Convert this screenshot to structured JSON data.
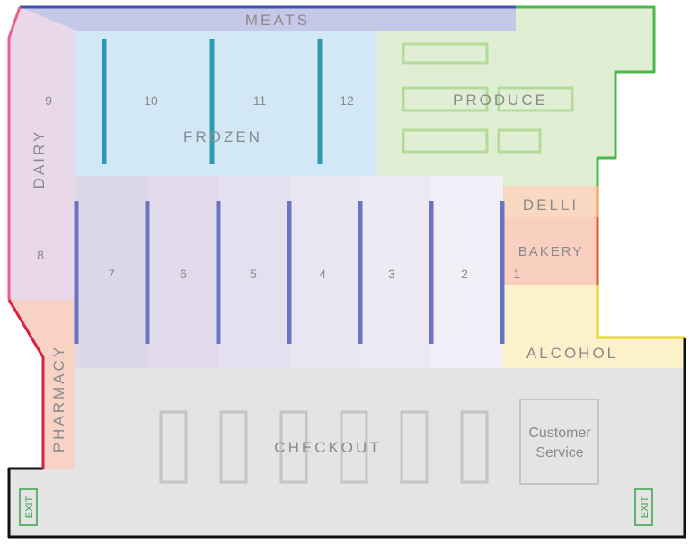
{
  "colors": {
    "meats": "#c5c8e6",
    "frozen": "#d3e8f6",
    "produce": "#e0efd4",
    "dairy": "#e9d7ea",
    "pharmacy": "#f9d2c6",
    "deli": "#fbd8c2",
    "bakery": "#f9d0c0",
    "alcohol": "#fdf1cc",
    "checkout": "#e4e4e4",
    "aisle_divider_frozen": "#2a9bb0",
    "aisle_divider": "#6a74c0",
    "produce_table": "#b5db9a",
    "border_left": "#d9203c",
    "border_top": "#3f55b5",
    "border_right": "#4cb84b",
    "border_yellow": "#e8d21a",
    "border_bottom": "#111111",
    "exit": "#3aa246"
  },
  "sections": {
    "meats": "MEATS",
    "frozen": "FROZEN",
    "produce": "PRODUCE",
    "dairy": "DAIRY",
    "pharmacy": "PHARMACY",
    "deli": "DELLI",
    "bakery": "BAKERY",
    "alcohol": "ALCOHOL",
    "checkout": "CHECKOUT"
  },
  "customer_service": {
    "line1": "Customer",
    "line2": "Service"
  },
  "aisles_top": [
    "10",
    "11",
    "12"
  ],
  "aisles_bottom": [
    "7",
    "6",
    "5",
    "4",
    "3",
    "2",
    "1"
  ],
  "dairy_numbers": {
    "upper": "9",
    "lower": "8"
  },
  "exits": {
    "left": "EXIT",
    "right": "EXIT"
  },
  "checkout_lanes": 6
}
